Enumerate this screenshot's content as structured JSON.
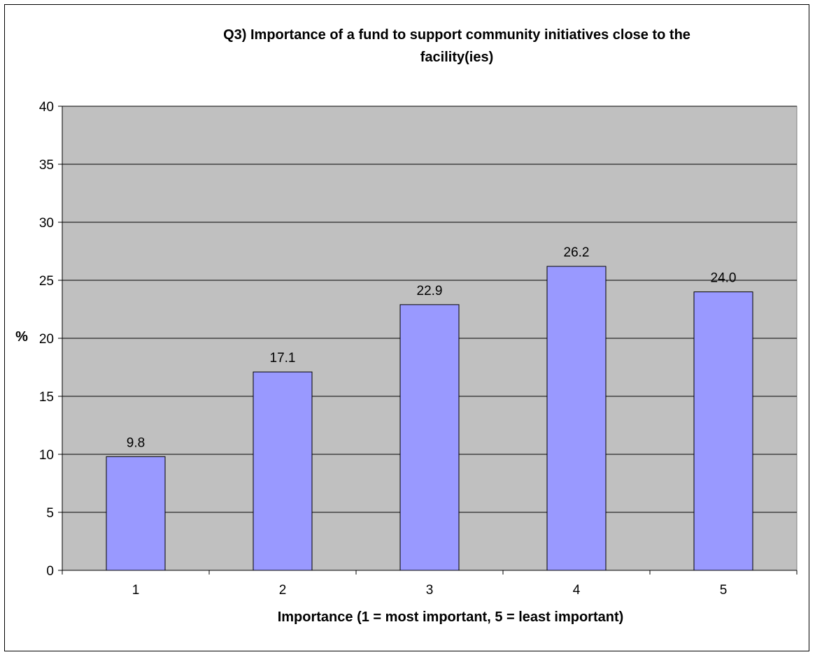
{
  "chart_data": {
    "type": "bar",
    "title": "Q3) Importance of a fund to support community initiatives close to the facility(ies)",
    "title_lines": [
      "Q3) Importance of a fund to support community initiatives close to the",
      "facility(ies)"
    ],
    "xlabel": "Importance (1 = most important, 5 = least important)",
    "ylabel": "%",
    "categories": [
      "1",
      "2",
      "3",
      "4",
      "5"
    ],
    "values": [
      9.8,
      17.1,
      22.9,
      26.2,
      24.0
    ],
    "value_labels": [
      "9.8",
      "17.1",
      "22.9",
      "26.2",
      "24.0"
    ],
    "ylim": [
      0,
      40
    ],
    "yticks": [
      "0",
      "5",
      "10",
      "15",
      "20",
      "25",
      "30",
      "35",
      "40"
    ],
    "grid": true,
    "legend": "none",
    "colors": {
      "bar_fill": "#9999ff",
      "bar_stroke": "#000000",
      "plot_background": "#c0c0c0",
      "gridline": "#000000"
    }
  }
}
